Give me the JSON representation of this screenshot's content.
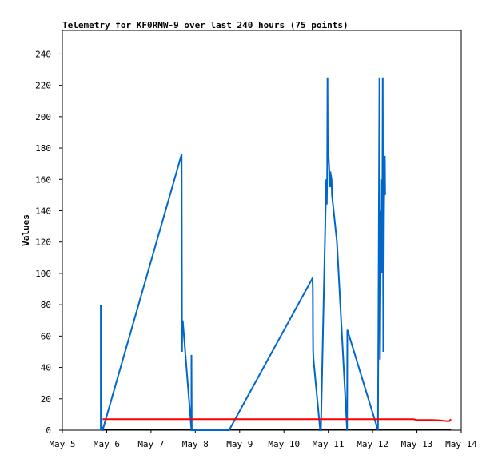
{
  "chart_data": {
    "type": "line",
    "title": "Telemetry for KF0RMW-9 over last 240 hours (75 points)",
    "xlabel": "",
    "ylabel": "Values",
    "ylim": [
      0,
      255
    ],
    "xlim": [
      0,
      216
    ],
    "x_ticks": [
      {
        "x": 0,
        "label": "May 5"
      },
      {
        "x": 24,
        "label": "May 6"
      },
      {
        "x": 48,
        "label": "May 7"
      },
      {
        "x": 72,
        "label": "May 8"
      },
      {
        "x": 96,
        "label": "May 9"
      },
      {
        "x": 120,
        "label": "May 10"
      },
      {
        "x": 144,
        "label": "May 11"
      },
      {
        "x": 168,
        "label": "May 12"
      },
      {
        "x": 192,
        "label": "May 13"
      },
      {
        "x": 216,
        "label": "May 14"
      }
    ],
    "y_ticks": [
      0,
      20,
      40,
      60,
      80,
      100,
      120,
      140,
      160,
      180,
      200,
      220,
      240
    ],
    "grid": false,
    "series": [
      {
        "color": "#0066cc",
        "x": [
          20.8,
          20.8,
          21.1,
          21.3,
          21.5,
          21.6,
          21.8,
          64.6,
          64.7,
          64.8,
          64.9,
          65.2,
          69.9,
          69.9,
          70.1,
          90.3,
          135.5,
          135.6,
          135.7,
          135.8,
          136.0,
          139.6,
          140.0,
          142.9,
          143.2,
          143.4,
          143.6,
          143.7,
          145.0,
          145.1,
          145.8,
          146.0,
          148.7,
          154.2,
          154.3,
          170.9,
          171.7,
          172.0,
          172.3,
          172.6,
          172.8,
          173.0,
          173.2,
          173.5,
          173.8,
          174.0,
          174.2,
          174.4,
          174.6,
          174.8
        ],
        "values": [
          0,
          80,
          32,
          0,
          2,
          0,
          0,
          176,
          100,
          50,
          62,
          70,
          0,
          48,
          0,
          0,
          97,
          90,
          63,
          50,
          45,
          0,
          0,
          160,
          144,
          165,
          225,
          185,
          155,
          165,
          160,
          150,
          120,
          0,
          64,
          0,
          225,
          45,
          90,
          140,
          125,
          160,
          100,
          225,
          50,
          100,
          140,
          160,
          175,
          150
        ]
      },
      {
        "color": "#ff0000",
        "x": [
          21.8,
          60,
          100,
          140,
          190,
          192,
          200,
          204,
          208,
          209.5,
          210.5
        ],
        "values": [
          7,
          7,
          7,
          7,
          7,
          6.5,
          6.5,
          6.3,
          5.8,
          5.8,
          7
        ]
      }
    ]
  }
}
